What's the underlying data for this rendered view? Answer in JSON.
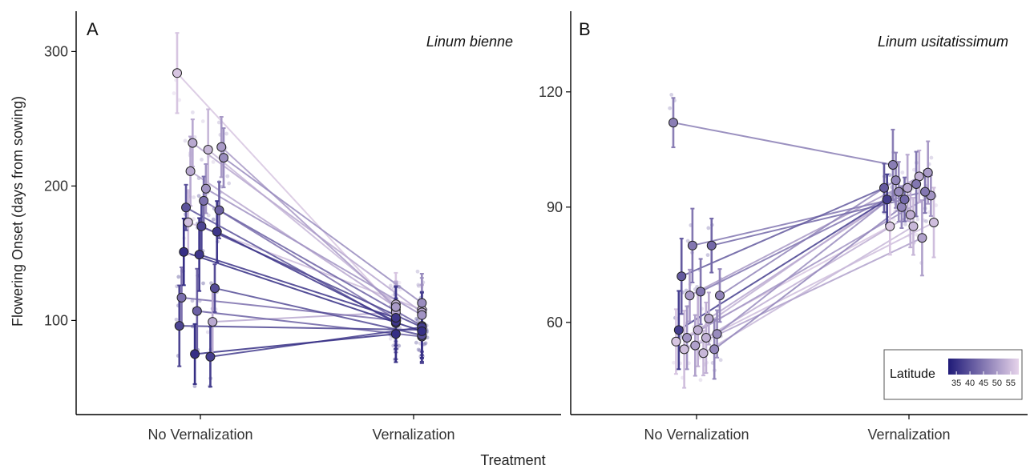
{
  "figure": {
    "xlabel": "Treatment",
    "ylabel": "Flowering Onset (days from sowing)"
  },
  "legend": {
    "title": "Latitude",
    "ticks": [
      "35",
      "40",
      "45",
      "50",
      "55"
    ],
    "placement": "bottom-right",
    "color_low": "#1f1a78",
    "color_high": "#e6d3ea"
  },
  "chart_data": [
    {
      "type": "line",
      "panel": "A",
      "title": "Linum bienne",
      "categories": [
        "No Vernalization",
        "Vernalization"
      ],
      "yticks": [
        "100",
        "200",
        "300"
      ],
      "ylim": [
        30,
        330
      ],
      "populations": [
        {
          "latitude": 56,
          "values": [
            284,
            108
          ]
        },
        {
          "latitude": 52,
          "values": [
            232,
            106
          ]
        },
        {
          "latitude": 54,
          "values": [
            227,
            112
          ]
        },
        {
          "latitude": 48,
          "values": [
            221,
            113
          ]
        },
        {
          "latitude": 52,
          "values": [
            211,
            110
          ]
        },
        {
          "latitude": 49,
          "values": [
            198,
            104
          ]
        },
        {
          "latitude": 50,
          "values": [
            229,
            110
          ]
        },
        {
          "latitude": 55,
          "values": [
            173,
            108
          ]
        },
        {
          "latitude": 44,
          "values": [
            189,
            101
          ]
        },
        {
          "latitude": 42,
          "values": [
            182,
            96
          ]
        },
        {
          "latitude": 40,
          "values": [
            184,
            98
          ]
        },
        {
          "latitude": 38,
          "values": [
            170,
            95
          ]
        },
        {
          "latitude": 36,
          "values": [
            166,
            99
          ]
        },
        {
          "latitude": 35,
          "values": [
            151,
            92
          ]
        },
        {
          "latitude": 36,
          "values": [
            149,
            102
          ]
        },
        {
          "latitude": 39,
          "values": [
            124,
            89
          ]
        },
        {
          "latitude": 44,
          "values": [
            117,
            100
          ]
        },
        {
          "latitude": 42,
          "values": [
            107,
            88
          ]
        },
        {
          "latitude": 52,
          "values": [
            99,
            106
          ]
        },
        {
          "latitude": 38,
          "values": [
            96,
            93
          ]
        },
        {
          "latitude": 35,
          "values": [
            75,
            90
          ]
        },
        {
          "latitude": 37,
          "values": [
            73,
            95
          ]
        }
      ]
    },
    {
      "type": "line",
      "panel": "B",
      "title": "Linum usitatissimum",
      "categories": [
        "No Vernalization",
        "Vernalization"
      ],
      "yticks": [
        "60",
        "90",
        "120"
      ],
      "ylim": [
        36,
        141
      ],
      "populations": [
        {
          "latitude": 46,
          "values": [
            112,
            101
          ]
        },
        {
          "latitude": 45,
          "values": [
            80,
            94
          ]
        },
        {
          "latitude": 43,
          "values": [
            80,
            92
          ]
        },
        {
          "latitude": 41,
          "values": [
            72,
            95
          ]
        },
        {
          "latitude": 45,
          "values": [
            68,
            96
          ]
        },
        {
          "latitude": 47,
          "values": [
            67,
            97
          ]
        },
        {
          "latitude": 50,
          "values": [
            67,
            99
          ]
        },
        {
          "latitude": 52,
          "values": [
            61,
            95
          ]
        },
        {
          "latitude": 37,
          "values": [
            58,
            92
          ]
        },
        {
          "latitude": 53,
          "values": [
            58,
            98
          ]
        },
        {
          "latitude": 48,
          "values": [
            57,
            94
          ]
        },
        {
          "latitude": 49,
          "values": [
            56,
            93
          ]
        },
        {
          "latitude": 53,
          "values": [
            56,
            88
          ]
        },
        {
          "latitude": 56,
          "values": [
            55,
            85
          ]
        },
        {
          "latitude": 51,
          "values": [
            54,
            82
          ]
        },
        {
          "latitude": 47,
          "values": [
            53,
            90
          ]
        },
        {
          "latitude": 55,
          "values": [
            53,
            86
          ]
        },
        {
          "latitude": 54,
          "values": [
            52,
            85
          ]
        }
      ]
    }
  ]
}
